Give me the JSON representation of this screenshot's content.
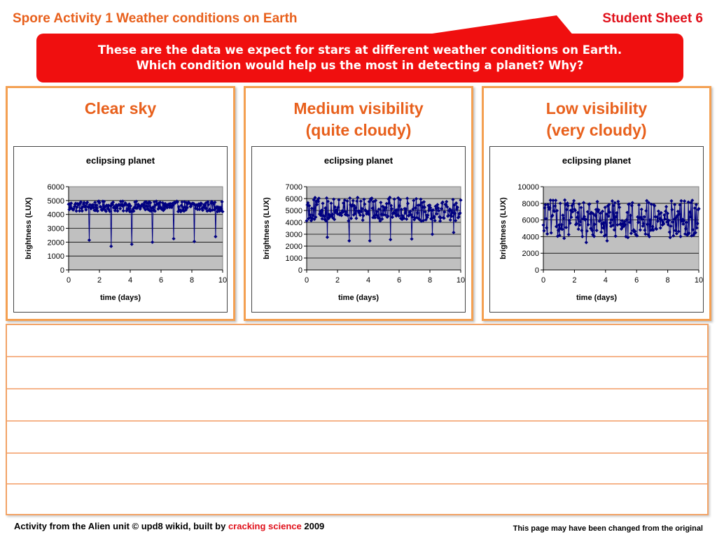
{
  "header": {
    "title": "Spore Activity 1 Weather conditions on Earth",
    "sheet": "Student Sheet 6"
  },
  "banner": {
    "line1": "These are the data we expect for stars at different weather conditions on Earth.",
    "line2": "Which condition would help us the most in detecting a planet? Why?"
  },
  "colors": {
    "accent_orange": "#e8601c",
    "banner_red": "#f00f0f",
    "series_navy": "#000080",
    "plot_bg": "#c0c0c0"
  },
  "panels": [
    {
      "title_lines": [
        "Clear sky"
      ]
    },
    {
      "title_lines": [
        "Medium visibility",
        "(quite cloudy)"
      ]
    },
    {
      "title_lines": [
        "Low visibility",
        "(very cloudy)"
      ]
    }
  ],
  "chart_data": [
    {
      "type": "line",
      "title": "eclipsing planet",
      "xlabel": "time (days)",
      "ylabel": "brightness (LUX)",
      "xlim": [
        0,
        10
      ],
      "ylim": [
        0,
        6000
      ],
      "xticks": [
        0,
        2,
        4,
        6,
        8,
        10
      ],
      "yticks": [
        0,
        1000,
        2000,
        3000,
        4000,
        5000,
        6000
      ],
      "grid": true,
      "baseline_range": [
        4200,
        4950
      ],
      "dips": [
        {
          "x": 1.35,
          "y": 2150
        },
        {
          "x": 2.75,
          "y": 1700
        },
        {
          "x": 4.1,
          "y": 1850
        },
        {
          "x": 5.45,
          "y": 2000
        },
        {
          "x": 6.8,
          "y": 2250
        },
        {
          "x": 8.15,
          "y": 2050
        },
        {
          "x": 9.55,
          "y": 2400
        }
      ]
    },
    {
      "type": "line",
      "title": "eclipsing planet",
      "xlabel": "time (days)",
      "ylabel": "brightness (LUX)",
      "xlim": [
        0,
        10
      ],
      "ylim": [
        0,
        7000
      ],
      "xticks": [
        0,
        2,
        4,
        6,
        8,
        10
      ],
      "yticks": [
        0,
        1000,
        2000,
        3000,
        4000,
        5000,
        6000,
        7000
      ],
      "grid": true,
      "baseline_range": [
        4100,
        6100
      ],
      "dips": [
        {
          "x": 1.35,
          "y": 2750
        },
        {
          "x": 2.75,
          "y": 2450
        },
        {
          "x": 4.1,
          "y": 2450
        },
        {
          "x": 5.45,
          "y": 2550
        },
        {
          "x": 6.8,
          "y": 2600
        },
        {
          "x": 8.15,
          "y": 3000
        },
        {
          "x": 9.55,
          "y": 3150
        }
      ]
    },
    {
      "type": "line",
      "title": "eclipsing planet",
      "xlabel": "time (days)",
      "ylabel": "brightness (LUX)",
      "xlim": [
        0,
        10
      ],
      "ylim": [
        0,
        10000
      ],
      "xticks": [
        0,
        2,
        4,
        6,
        8,
        10
      ],
      "yticks": [
        0,
        2000,
        4000,
        6000,
        8000,
        10000
      ],
      "grid": true,
      "baseline_range": [
        4000,
        8400
      ],
      "dips": [
        {
          "x": 1.35,
          "y": 3800
        },
        {
          "x": 2.75,
          "y": 3300
        },
        {
          "x": 4.1,
          "y": 3500
        },
        {
          "x": 5.45,
          "y": 3900
        },
        {
          "x": 6.8,
          "y": 4000
        },
        {
          "x": 8.15,
          "y": 3900
        },
        {
          "x": 9.55,
          "y": 4100
        }
      ]
    }
  ],
  "footer": {
    "left_prefix": "Activity from the Alien unit  © upd8 wikid, built by ",
    "left_brand": "cracking science",
    "left_suffix": " 2009",
    "right": "This page may have been changed from the original"
  }
}
